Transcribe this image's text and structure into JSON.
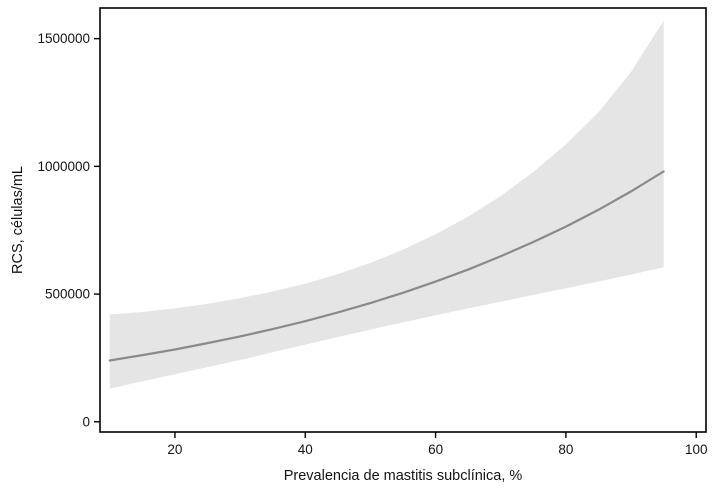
{
  "chart_data": {
    "type": "line",
    "title": "",
    "xlabel": "Prevalencia de mastitis subclínica, %",
    "ylabel": "RCS, células/mL",
    "xlim": [
      8.5,
      101.5
    ],
    "ylim": [
      -40000,
      1620000
    ],
    "grid": false,
    "legend": "none",
    "x": [
      10,
      15,
      20,
      25,
      30,
      35,
      40,
      45,
      50,
      55,
      60,
      65,
      70,
      75,
      80,
      85,
      90,
      95
    ],
    "series": [
      {
        "name": "RCS predicho",
        "values": [
          240000,
          261000,
          283000,
          308000,
          334000,
          363000,
          394000,
          428000,
          465000,
          505000,
          549000,
          596000,
          648000,
          704000,
          764000,
          830000,
          902000,
          980000
        ]
      },
      {
        "name": "banda de confianza inferior",
        "values": [
          130000,
          158000,
          186000,
          214000,
          242000,
          272000,
          302000,
          332000,
          361000,
          389000,
          417000,
          444000,
          470000,
          497000,
          523000,
          549000,
          576000,
          605000
        ]
      },
      {
        "name": "banda de confianza superior",
        "values": [
          420000,
          430000,
          444000,
          462000,
          484000,
          510000,
          541000,
          578000,
          622000,
          674000,
          734000,
          803000,
          884000,
          978000,
          1086000,
          1212000,
          1370000,
          1570000
        ]
      }
    ],
    "xticks": {
      "values": [
        20,
        40,
        60,
        80,
        100
      ],
      "labels": [
        "20",
        "40",
        "60",
        "80",
        "100"
      ]
    },
    "yticks": {
      "values": [
        0,
        500000,
        1000000,
        1500000
      ],
      "labels": [
        "0",
        "500000",
        "1000000",
        "1500000"
      ]
    },
    "colors": {
      "band": "#e5e5e5",
      "line": "#8a8a8a",
      "border": "#000000",
      "tick": "#000000",
      "text": "#141414",
      "background": "#ffffff"
    }
  }
}
